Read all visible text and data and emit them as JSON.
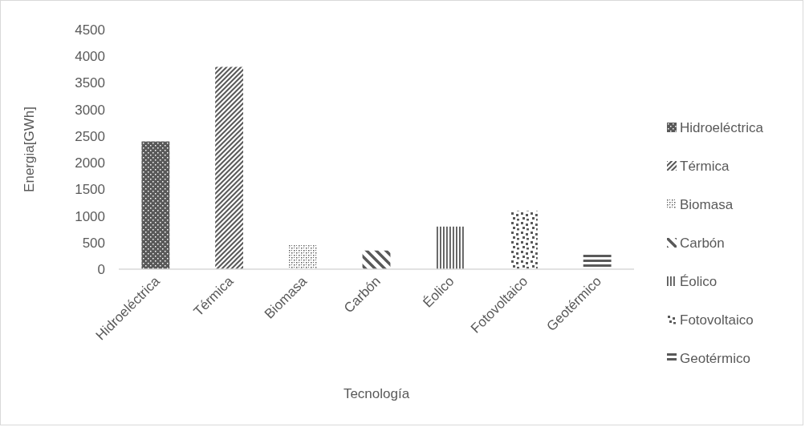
{
  "chart_data": {
    "type": "bar",
    "xlabel": "Tecnología",
    "ylabel": "Energia[GWh]",
    "categories": [
      "Hidroeléctrica",
      "Térmica",
      "Biomasa",
      "Carbón",
      "Éolico",
      "Fotovoltaico",
      "Geotérmico"
    ],
    "series": [
      {
        "name": "Hidroeléctrica",
        "color": "#595959",
        "values": [
          2400,
          null,
          null,
          null,
          null,
          null,
          null
        ]
      },
      {
        "name": "Térmica",
        "color": "#595959",
        "values": [
          null,
          3800,
          null,
          null,
          null,
          null,
          null
        ]
      },
      {
        "name": "Biomasa",
        "color": "#595959",
        "values": [
          null,
          null,
          450,
          null,
          null,
          null,
          null
        ]
      },
      {
        "name": "Carbón",
        "color": "#595959",
        "values": [
          null,
          null,
          null,
          350,
          null,
          null,
          null
        ]
      },
      {
        "name": "Éolico",
        "color": "#595959",
        "values": [
          null,
          null,
          null,
          null,
          800,
          null,
          null
        ]
      },
      {
        "name": "Fotovoltaico",
        "color": "#595959",
        "values": [
          null,
          null,
          null,
          null,
          null,
          1100,
          null
        ]
      },
      {
        "name": "Geotérmico",
        "color": "#595959",
        "values": [
          null,
          null,
          null,
          null,
          null,
          null,
          300
        ]
      }
    ],
    "ylim": [
      0,
      4500
    ],
    "yticks": [
      0,
      500,
      1000,
      1500,
      2000,
      2500,
      3000,
      3500,
      4000,
      4500
    ],
    "legend": "right"
  }
}
